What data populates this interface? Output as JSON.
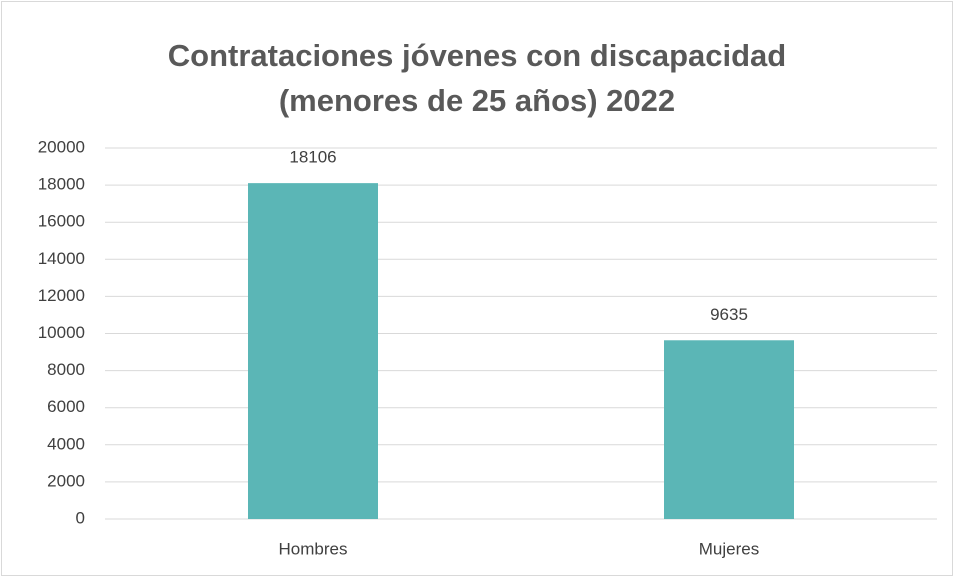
{
  "chart_data": {
    "type": "bar",
    "title": [
      "Contrataciones jóvenes con discapacidad",
      "(menores de 25 años) 2022"
    ],
    "categories": [
      "Hombres",
      "Mujeres"
    ],
    "values": [
      18106,
      9635
    ],
    "color": "#5bb6b6",
    "ylim": [
      0,
      20000
    ],
    "yticks": [
      0,
      2000,
      4000,
      6000,
      8000,
      10000,
      12000,
      14000,
      16000,
      18000,
      20000
    ],
    "grid": true
  }
}
